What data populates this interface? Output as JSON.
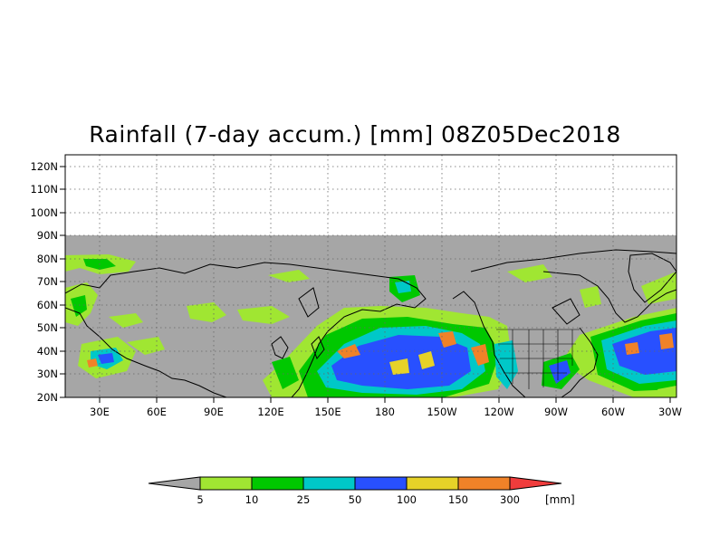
{
  "title": "Rainfall (7-day accum.) [mm] 08Z05Dec2018",
  "latitude_labels": [
    "120N",
    "110N",
    "100N",
    "90N",
    "80N",
    "70N",
    "60N",
    "50N",
    "40N",
    "30N",
    "20N"
  ],
  "longitude_labels": [
    "30E",
    "60E",
    "90E",
    "120E",
    "150E",
    "180",
    "150W",
    "120W",
    "90W",
    "60W",
    "30W"
  ],
  "legend": {
    "unit": "[mm]",
    "thresholds": [
      "5",
      "10",
      "25",
      "50",
      "100",
      "150",
      "300"
    ],
    "colors": [
      "#a6a6a6",
      "#a0e632",
      "#00c800",
      "#00c8c8",
      "#2850ff",
      "#e6d228",
      "#f08228",
      "#f03c3c"
    ]
  },
  "colors": {
    "no_data": "#a6a6a6",
    "coastline": "#000000",
    "grid": "#666666"
  }
}
